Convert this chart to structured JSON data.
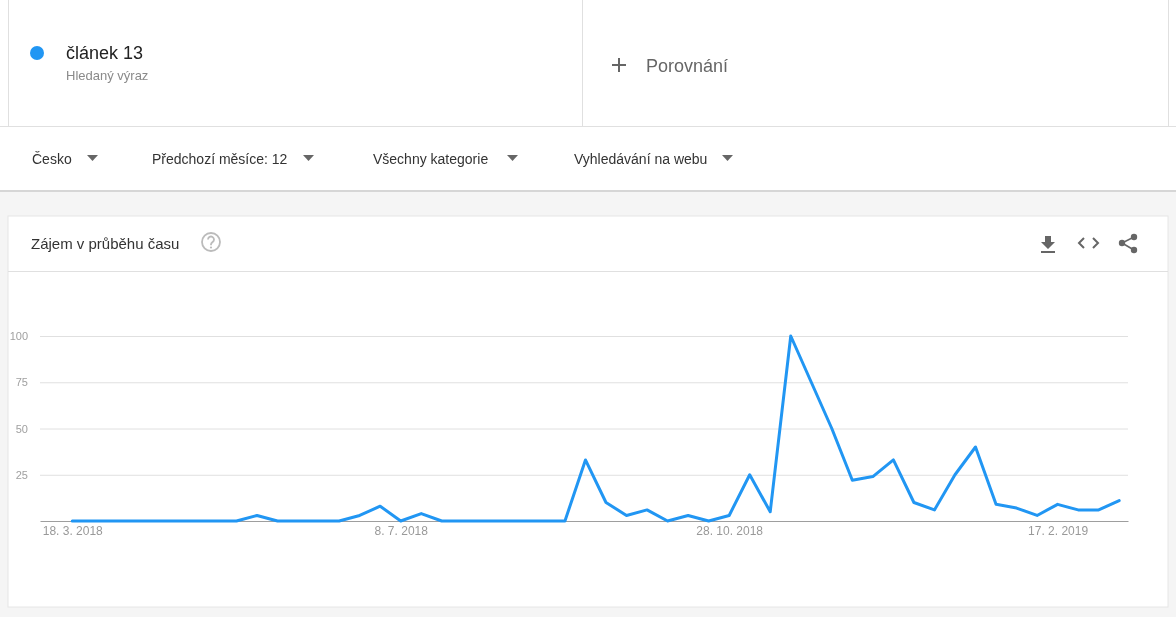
{
  "chart_data": {
    "type": "line",
    "title": "Zájem v průběhu času",
    "annotations": [
      "Hledaný výraz",
      "Porovnání",
      "Česko",
      "Předchozí měsíce: 12",
      "Všechny kategorie",
      "Vyhledávání na webu"
    ],
    "x": [
      "2018-03-18",
      "2018-03-25",
      "2018-04-01",
      "2018-04-08",
      "2018-04-15",
      "2018-04-22",
      "2018-04-29",
      "2018-05-06",
      "2018-05-13",
      "2018-05-20",
      "2018-05-27",
      "2018-06-03",
      "2018-06-10",
      "2018-06-17",
      "2018-06-24",
      "2018-07-01",
      "2018-07-08",
      "2018-07-15",
      "2018-07-22",
      "2018-07-29",
      "2018-08-05",
      "2018-08-12",
      "2018-08-19",
      "2018-08-26",
      "2018-09-02",
      "2018-09-09",
      "2018-09-16",
      "2018-09-23",
      "2018-09-30",
      "2018-10-07",
      "2018-10-14",
      "2018-10-21",
      "2018-10-28",
      "2018-11-04",
      "2018-11-11",
      "2018-11-18",
      "2018-11-25",
      "2018-12-02",
      "2018-12-09",
      "2018-12-16",
      "2018-12-23",
      "2018-12-30",
      "2019-01-06",
      "2019-01-13",
      "2019-01-20",
      "2019-01-27",
      "2019-02-03",
      "2019-02-10",
      "2019-02-17",
      "2019-02-24",
      "2019-03-03",
      "2019-03-10"
    ],
    "series": [
      {
        "name": "článek 13",
        "color": "#2196f3",
        "values": [
          0,
          0,
          0,
          0,
          0,
          0,
          0,
          0,
          0,
          3,
          0,
          0,
          0,
          0,
          3,
          8,
          0,
          4,
          0,
          0,
          0,
          0,
          0,
          0,
          0,
          33,
          10,
          3,
          6,
          0,
          3,
          0,
          3,
          25,
          5,
          100,
          75,
          50,
          22,
          24,
          33,
          10,
          6,
          25,
          40,
          9,
          7,
          3,
          9,
          6,
          6,
          11
        ]
      }
    ],
    "xlim": [
      "2018-03-07",
      "2019-03-13"
    ],
    "xticks": [
      {
        "value": "2018-03-18",
        "label": "18. 3. 2018"
      },
      {
        "value": "2018-07-08",
        "label": "8. 7. 2018"
      },
      {
        "value": "2018-10-28",
        "label": "28. 10. 2018"
      },
      {
        "value": "2019-02-17",
        "label": "17. 2. 2019"
      }
    ],
    "ylim": [
      0,
      100
    ],
    "yticks": [
      25,
      50,
      75,
      100
    ],
    "grid": "y",
    "legend": "top left",
    "line_style": "solid"
  }
}
